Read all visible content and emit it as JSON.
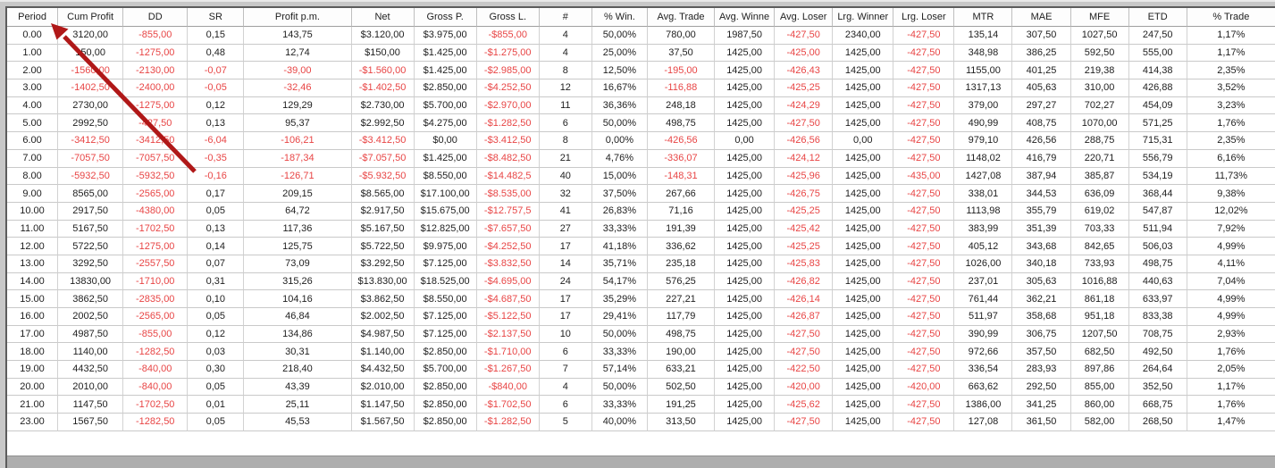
{
  "colors": {
    "negative_text": "#e84545",
    "annotation_arrow": "#b01818",
    "background_gray": "#c8c8c8"
  },
  "annotation": {
    "arrow_points_to": "Period"
  },
  "table": {
    "columns": [
      "Period",
      "Cum Profit",
      "DD",
      "SR",
      "Profit p.m.",
      "Net",
      "Gross P.",
      "Gross L.",
      "#",
      "% Win.",
      "Avg. Trade",
      "Avg. Winne",
      "Avg. Loser",
      "Lrg. Winner",
      "Lrg. Loser",
      "MTR",
      "MAE",
      "MFE",
      "ETD",
      "% Trade"
    ],
    "rows": [
      [
        "0.00",
        "3120,00",
        "-855,00",
        "0,15",
        "143,75",
        "$3.120,00",
        "$3.975,00",
        "-$855,00",
        "4",
        "50,00%",
        "780,00",
        "1987,50",
        "-427,50",
        "2340,00",
        "-427,50",
        "135,14",
        "307,50",
        "1027,50",
        "247,50",
        "1,17%"
      ],
      [
        "1.00",
        "150,00",
        "-1275,00",
        "0,48",
        "12,74",
        "$150,00",
        "$1.425,00",
        "-$1.275,00",
        "4",
        "25,00%",
        "37,50",
        "1425,00",
        "-425,00",
        "1425,00",
        "-427,50",
        "348,98",
        "386,25",
        "592,50",
        "555,00",
        "1,17%"
      ],
      [
        "2.00",
        "-1560,00",
        "-2130,00",
        "-0,07",
        "-39,00",
        "-$1.560,00",
        "$1.425,00",
        "-$2.985,00",
        "8",
        "12,50%",
        "-195,00",
        "1425,00",
        "-426,43",
        "1425,00",
        "-427,50",
        "1155,00",
        "401,25",
        "219,38",
        "414,38",
        "2,35%"
      ],
      [
        "3.00",
        "-1402,50",
        "-2400,00",
        "-0,05",
        "-32,46",
        "-$1.402,50",
        "$2.850,00",
        "-$4.252,50",
        "12",
        "16,67%",
        "-116,88",
        "1425,00",
        "-425,25",
        "1425,00",
        "-427,50",
        "1317,13",
        "405,63",
        "310,00",
        "426,88",
        "3,52%"
      ],
      [
        "4.00",
        "2730,00",
        "-1275,00",
        "0,12",
        "129,29",
        "$2.730,00",
        "$5.700,00",
        "-$2.970,00",
        "11",
        "36,36%",
        "248,18",
        "1425,00",
        "-424,29",
        "1425,00",
        "-427,50",
        "379,00",
        "297,27",
        "702,27",
        "454,09",
        "3,23%"
      ],
      [
        "5.00",
        "2992,50",
        "-427,50",
        "0,13",
        "95,37",
        "$2.992,50",
        "$4.275,00",
        "-$1.282,50",
        "6",
        "50,00%",
        "498,75",
        "1425,00",
        "-427,50",
        "1425,00",
        "-427,50",
        "490,99",
        "408,75",
        "1070,00",
        "571,25",
        "1,76%"
      ],
      [
        "6.00",
        "-3412,50",
        "-3412,50",
        "-6,04",
        "-106,21",
        "-$3.412,50",
        "$0,00",
        "-$3.412,50",
        "8",
        "0,00%",
        "-426,56",
        "0,00",
        "-426,56",
        "0,00",
        "-427,50",
        "979,10",
        "426,56",
        "288,75",
        "715,31",
        "2,35%"
      ],
      [
        "7.00",
        "-7057,50",
        "-7057,50",
        "-0,35",
        "-187,34",
        "-$7.057,50",
        "$1.425,00",
        "-$8.482,50",
        "21",
        "4,76%",
        "-336,07",
        "1425,00",
        "-424,12",
        "1425,00",
        "-427,50",
        "1148,02",
        "416,79",
        "220,71",
        "556,79",
        "6,16%"
      ],
      [
        "8.00",
        "-5932,50",
        "-5932,50",
        "-0,16",
        "-126,71",
        "-$5.932,50",
        "$8.550,00",
        "-$14.482,5",
        "40",
        "15,00%",
        "-148,31",
        "1425,00",
        "-425,96",
        "1425,00",
        "-435,00",
        "1427,08",
        "387,94",
        "385,87",
        "534,19",
        "11,73%"
      ],
      [
        "9.00",
        "8565,00",
        "-2565,00",
        "0,17",
        "209,15",
        "$8.565,00",
        "$17.100,00",
        "-$8.535,00",
        "32",
        "37,50%",
        "267,66",
        "1425,00",
        "-426,75",
        "1425,00",
        "-427,50",
        "338,01",
        "344,53",
        "636,09",
        "368,44",
        "9,38%"
      ],
      [
        "10.00",
        "2917,50",
        "-4380,00",
        "0,05",
        "64,72",
        "$2.917,50",
        "$15.675,00",
        "-$12.757,5",
        "41",
        "26,83%",
        "71,16",
        "1425,00",
        "-425,25",
        "1425,00",
        "-427,50",
        "1113,98",
        "355,79",
        "619,02",
        "547,87",
        "12,02%"
      ],
      [
        "11.00",
        "5167,50",
        "-1702,50",
        "0,13",
        "117,36",
        "$5.167,50",
        "$12.825,00",
        "-$7.657,50",
        "27",
        "33,33%",
        "191,39",
        "1425,00",
        "-425,42",
        "1425,00",
        "-427,50",
        "383,99",
        "351,39",
        "703,33",
        "511,94",
        "7,92%"
      ],
      [
        "12.00",
        "5722,50",
        "-1275,00",
        "0,14",
        "125,75",
        "$5.722,50",
        "$9.975,00",
        "-$4.252,50",
        "17",
        "41,18%",
        "336,62",
        "1425,00",
        "-425,25",
        "1425,00",
        "-427,50",
        "405,12",
        "343,68",
        "842,65",
        "506,03",
        "4,99%"
      ],
      [
        "13.00",
        "3292,50",
        "-2557,50",
        "0,07",
        "73,09",
        "$3.292,50",
        "$7.125,00",
        "-$3.832,50",
        "14",
        "35,71%",
        "235,18",
        "1425,00",
        "-425,83",
        "1425,00",
        "-427,50",
        "1026,00",
        "340,18",
        "733,93",
        "498,75",
        "4,11%"
      ],
      [
        "14.00",
        "13830,00",
        "-1710,00",
        "0,31",
        "315,26",
        "$13.830,00",
        "$18.525,00",
        "-$4.695,00",
        "24",
        "54,17%",
        "576,25",
        "1425,00",
        "-426,82",
        "1425,00",
        "-427,50",
        "237,01",
        "305,63",
        "1016,88",
        "440,63",
        "7,04%"
      ],
      [
        "15.00",
        "3862,50",
        "-2835,00",
        "0,10",
        "104,16",
        "$3.862,50",
        "$8.550,00",
        "-$4.687,50",
        "17",
        "35,29%",
        "227,21",
        "1425,00",
        "-426,14",
        "1425,00",
        "-427,50",
        "761,44",
        "362,21",
        "861,18",
        "633,97",
        "4,99%"
      ],
      [
        "16.00",
        "2002,50",
        "-2565,00",
        "0,05",
        "46,84",
        "$2.002,50",
        "$7.125,00",
        "-$5.122,50",
        "17",
        "29,41%",
        "117,79",
        "1425,00",
        "-426,87",
        "1425,00",
        "-427,50",
        "511,97",
        "358,68",
        "951,18",
        "833,38",
        "4,99%"
      ],
      [
        "17.00",
        "4987,50",
        "-855,00",
        "0,12",
        "134,86",
        "$4.987,50",
        "$7.125,00",
        "-$2.137,50",
        "10",
        "50,00%",
        "498,75",
        "1425,00",
        "-427,50",
        "1425,00",
        "-427,50",
        "390,99",
        "306,75",
        "1207,50",
        "708,75",
        "2,93%"
      ],
      [
        "18.00",
        "1140,00",
        "-1282,50",
        "0,03",
        "30,31",
        "$1.140,00",
        "$2.850,00",
        "-$1.710,00",
        "6",
        "33,33%",
        "190,00",
        "1425,00",
        "-427,50",
        "1425,00",
        "-427,50",
        "972,66",
        "357,50",
        "682,50",
        "492,50",
        "1,76%"
      ],
      [
        "19.00",
        "4432,50",
        "-840,00",
        "0,30",
        "218,40",
        "$4.432,50",
        "$5.700,00",
        "-$1.267,50",
        "7",
        "57,14%",
        "633,21",
        "1425,00",
        "-422,50",
        "1425,00",
        "-427,50",
        "336,54",
        "283,93",
        "897,86",
        "264,64",
        "2,05%"
      ],
      [
        "20.00",
        "2010,00",
        "-840,00",
        "0,05",
        "43,39",
        "$2.010,00",
        "$2.850,00",
        "-$840,00",
        "4",
        "50,00%",
        "502,50",
        "1425,00",
        "-420,00",
        "1425,00",
        "-420,00",
        "663,62",
        "292,50",
        "855,00",
        "352,50",
        "1,17%"
      ],
      [
        "21.00",
        "1147,50",
        "-1702,50",
        "0,01",
        "25,11",
        "$1.147,50",
        "$2.850,00",
        "-$1.702,50",
        "6",
        "33,33%",
        "191,25",
        "1425,00",
        "-425,62",
        "1425,00",
        "-427,50",
        "1386,00",
        "341,25",
        "860,00",
        "668,75",
        "1,76%"
      ],
      [
        "23.00",
        "1567,50",
        "-1282,50",
        "0,05",
        "45,53",
        "$1.567,50",
        "$2.850,00",
        "-$1.282,50",
        "5",
        "40,00%",
        "313,50",
        "1425,00",
        "-427,50",
        "1425,00",
        "-427,50",
        "127,08",
        "361,50",
        "582,00",
        "268,50",
        "1,47%"
      ]
    ]
  }
}
